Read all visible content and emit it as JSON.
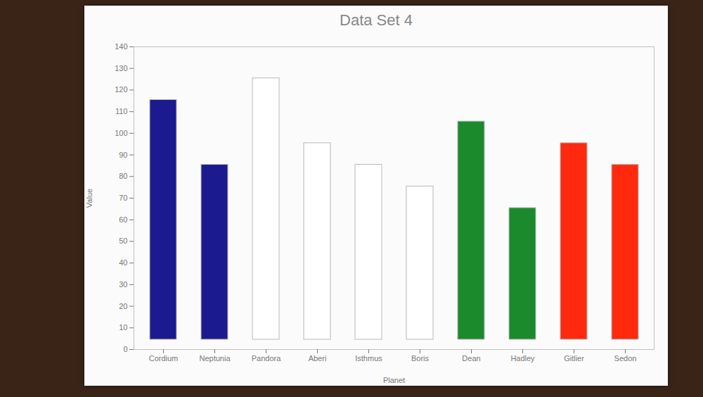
{
  "chart_data": {
    "type": "bar",
    "title": "Data Set 4",
    "x_label": "Planet",
    "y_label": "Value",
    "categories": [
      "Cordium",
      "Neptunia",
      "Pandora",
      "Aberi",
      "Isthmus",
      "Boris",
      "Dean",
      "Hadley",
      "Gitlier",
      "Sedon"
    ],
    "values": [
      120,
      90,
      130,
      100,
      90,
      80,
      110,
      70,
      100,
      90
    ],
    "colors": [
      "#1c1a8f",
      "#1c1a8f",
      "#ffffff",
      "#ffffff",
      "#ffffff",
      "#ffffff",
      "#1a8a2c",
      "#1a8a2c",
      "#ff2a0e",
      "#ff2a0e"
    ],
    "ylim": [
      0,
      140
    ],
    "yticks": [
      0,
      10,
      20,
      30,
      40,
      50,
      60,
      70,
      80,
      90,
      100,
      110,
      120,
      130,
      140
    ],
    "grid": false
  }
}
